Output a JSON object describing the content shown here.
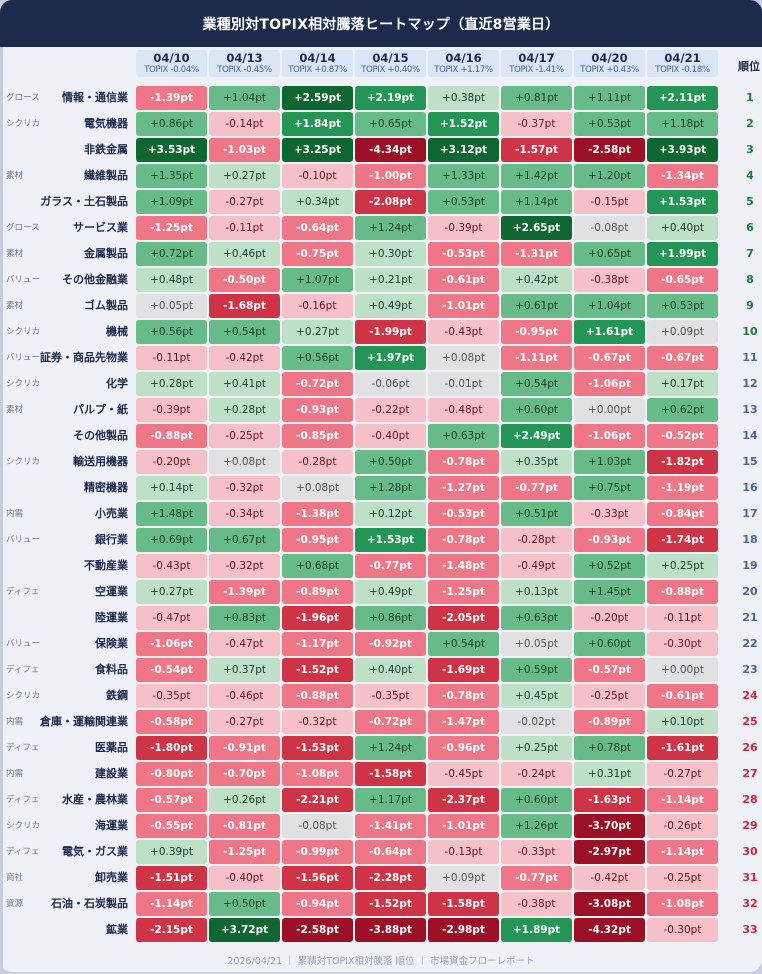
{
  "title": "業種別対TOPIX相対騰落ヒートマップ（直近8営業日）",
  "rank_header": "順位",
  "footer": "2026/04/21 ｜ 累積対TOPIX相対騰落 順位 ｜ 市場資金フローレポート",
  "columns": [
    {
      "date": "04/10",
      "topix": "TOPIX -0.04%"
    },
    {
      "date": "04/13",
      "topix": "TOPIX -0.45%"
    },
    {
      "date": "04/14",
      "topix": "TOPIX +0.87%"
    },
    {
      "date": "04/15",
      "topix": "TOPIX +0.40%"
    },
    {
      "date": "04/16",
      "topix": "TOPIX +1.17%"
    },
    {
      "date": "04/17",
      "topix": "TOPIX -1.41%"
    },
    {
      "date": "04/20",
      "topix": "TOPIX +0.43%"
    },
    {
      "date": "04/21",
      "topix": "TOPIX -0.18%"
    }
  ],
  "colors": {
    "title_bg": "#1c2a4b",
    "rank_top": "#1f7a3e",
    "rank_mid": "#4f6590",
    "rank_bottom": "#c8283c",
    "pos_strongest": "#0e6630",
    "pos_strong": "#239656",
    "pos_medium": "#66bb88",
    "pos_light": "#bde0c6",
    "neutral": "#e1e1e3",
    "neg_light": "#f5c0c8",
    "neg_medium": "#ee7686",
    "neg_strong": "#cf3346",
    "neg_strongest": "#9b1024"
  },
  "chart_data": {
    "type": "heatmap",
    "title": "業種別対TOPIX相対騰落ヒートマップ（直近8営業日）",
    "unit": "pt",
    "x": [
      "04/10",
      "04/13",
      "04/14",
      "04/15",
      "04/16",
      "04/17",
      "04/20",
      "04/21"
    ],
    "topix_change_pct": [
      -0.04,
      -0.45,
      0.87,
      0.4,
      1.17,
      -1.41,
      0.43,
      -0.18
    ],
    "rows": [
      {
        "rank": 1,
        "tag": "グロース",
        "sector": "情報・通信業",
        "values": [
          -1.39,
          1.04,
          2.59,
          2.19,
          0.38,
          0.81,
          1.11,
          2.11
        ]
      },
      {
        "rank": 2,
        "tag": "シクリカ",
        "sector": "電気機器",
        "values": [
          0.86,
          -0.14,
          1.84,
          0.65,
          1.52,
          -0.37,
          0.53,
          1.18
        ]
      },
      {
        "rank": 3,
        "tag": "",
        "sector": "非鉄金属",
        "values": [
          3.53,
          -1.03,
          3.25,
          -4.34,
          3.12,
          -1.57,
          -2.58,
          3.93
        ]
      },
      {
        "rank": 4,
        "tag": "素材",
        "sector": "繊維製品",
        "values": [
          1.35,
          0.27,
          -0.1,
          -1.0,
          1.33,
          1.42,
          1.2,
          -1.34
        ]
      },
      {
        "rank": 5,
        "tag": "",
        "sector": "ガラス・土石製品",
        "values": [
          1.09,
          -0.27,
          0.34,
          -2.08,
          0.53,
          1.14,
          -0.15,
          1.53
        ]
      },
      {
        "rank": 6,
        "tag": "グロース",
        "sector": "サービス業",
        "values": [
          -1.25,
          -0.11,
          -0.64,
          1.24,
          -0.39,
          2.65,
          -0.08,
          0.4
        ]
      },
      {
        "rank": 7,
        "tag": "素材",
        "sector": "金属製品",
        "values": [
          0.72,
          0.46,
          -0.75,
          0.3,
          -0.53,
          -1.31,
          0.65,
          1.99
        ]
      },
      {
        "rank": 8,
        "tag": "バリュー",
        "sector": "その他金融業",
        "values": [
          0.48,
          -0.5,
          1.07,
          0.21,
          -0.61,
          0.42,
          -0.38,
          -0.65
        ]
      },
      {
        "rank": 9,
        "tag": "素材",
        "sector": "ゴム製品",
        "values": [
          0.05,
          -1.68,
          -0.16,
          0.49,
          -1.01,
          0.61,
          1.04,
          0.53
        ]
      },
      {
        "rank": 10,
        "tag": "シクリカ",
        "sector": "機械",
        "values": [
          0.56,
          0.54,
          0.27,
          -1.99,
          -0.43,
          -0.95,
          1.61,
          0.09
        ]
      },
      {
        "rank": 11,
        "tag": "バリュー",
        "sector": "証券・商品先物業",
        "values": [
          -0.11,
          -0.42,
          0.56,
          1.97,
          0.08,
          -1.11,
          -0.67,
          -0.67
        ]
      },
      {
        "rank": 12,
        "tag": "シクリカ",
        "sector": "化学",
        "values": [
          0.28,
          0.41,
          -0.72,
          -0.06,
          -0.01,
          0.54,
          -1.06,
          0.17
        ]
      },
      {
        "rank": 13,
        "tag": "素材",
        "sector": "パルプ・紙",
        "values": [
          -0.39,
          0.28,
          -0.93,
          -0.22,
          -0.48,
          0.6,
          0.0,
          0.62
        ]
      },
      {
        "rank": 14,
        "tag": "",
        "sector": "その他製品",
        "values": [
          -0.88,
          -0.25,
          -0.85,
          -0.4,
          0.63,
          2.49,
          -1.06,
          -0.52
        ]
      },
      {
        "rank": 15,
        "tag": "シクリカ",
        "sector": "輸送用機器",
        "values": [
          -0.2,
          0.08,
          -0.28,
          0.5,
          -0.78,
          0.35,
          1.03,
          -1.82
        ]
      },
      {
        "rank": 16,
        "tag": "",
        "sector": "精密機器",
        "values": [
          0.14,
          -0.32,
          0.08,
          1.28,
          -1.27,
          -0.77,
          0.75,
          -1.19
        ]
      },
      {
        "rank": 17,
        "tag": "内需",
        "sector": "小売業",
        "values": [
          1.48,
          -0.34,
          -1.38,
          0.12,
          -0.53,
          0.51,
          -0.33,
          -0.84
        ]
      },
      {
        "rank": 18,
        "tag": "バリュー",
        "sector": "銀行業",
        "values": [
          0.69,
          0.67,
          -0.95,
          1.53,
          -0.78,
          -0.28,
          -0.93,
          -1.74
        ]
      },
      {
        "rank": 19,
        "tag": "",
        "sector": "不動産業",
        "values": [
          -0.43,
          -0.32,
          0.68,
          -0.77,
          -1.48,
          -0.49,
          0.52,
          0.25
        ]
      },
      {
        "rank": 20,
        "tag": "ディフェ",
        "sector": "空運業",
        "values": [
          0.27,
          -1.39,
          -0.89,
          0.49,
          -1.25,
          0.13,
          1.45,
          -0.88
        ]
      },
      {
        "rank": 21,
        "tag": "",
        "sector": "陸運業",
        "values": [
          -0.47,
          0.83,
          -1.96,
          0.86,
          -2.05,
          0.63,
          -0.2,
          -0.11
        ]
      },
      {
        "rank": 22,
        "tag": "バリュー",
        "sector": "保険業",
        "values": [
          -1.06,
          -0.47,
          -1.17,
          -0.92,
          0.54,
          0.05,
          0.6,
          -0.3
        ]
      },
      {
        "rank": 23,
        "tag": "ディフェ",
        "sector": "食料品",
        "values": [
          -0.54,
          0.37,
          -1.52,
          0.4,
          -1.69,
          0.59,
          -0.57,
          0.0
        ]
      },
      {
        "rank": 24,
        "tag": "シクリカ",
        "sector": "鉄鋼",
        "values": [
          -0.35,
          -0.46,
          -0.88,
          -0.35,
          -0.78,
          0.45,
          -0.25,
          -0.61
        ]
      },
      {
        "rank": 25,
        "tag": "内需",
        "sector": "倉庫・運輸関連業",
        "values": [
          -0.58,
          -0.27,
          -0.32,
          -0.72,
          -1.47,
          -0.02,
          -0.89,
          0.1
        ]
      },
      {
        "rank": 26,
        "tag": "ディフェ",
        "sector": "医薬品",
        "values": [
          -1.8,
          -0.91,
          -1.53,
          1.24,
          -0.96,
          0.25,
          0.78,
          -1.61
        ]
      },
      {
        "rank": 27,
        "tag": "内需",
        "sector": "建設業",
        "values": [
          -0.8,
          -0.7,
          -1.08,
          -1.58,
          -0.45,
          -0.24,
          0.31,
          -0.27
        ]
      },
      {
        "rank": 28,
        "tag": "ディフェ",
        "sector": "水産・農林業",
        "values": [
          -0.57,
          0.26,
          -2.21,
          1.17,
          -2.37,
          0.6,
          -1.63,
          -1.14
        ]
      },
      {
        "rank": 29,
        "tag": "シクリカ",
        "sector": "海運業",
        "values": [
          -0.55,
          -0.81,
          -0.08,
          -1.41,
          -1.01,
          1.26,
          -3.7,
          -0.26
        ]
      },
      {
        "rank": 30,
        "tag": "ディフェ",
        "sector": "電気・ガス業",
        "values": [
          0.39,
          -1.25,
          -0.99,
          -0.64,
          -0.13,
          -0.33,
          -2.97,
          -1.14
        ]
      },
      {
        "rank": 31,
        "tag": "商社",
        "sector": "卸売業",
        "values": [
          -1.51,
          -0.4,
          -1.56,
          -2.28,
          0.09,
          -0.77,
          -0.42,
          -0.25
        ]
      },
      {
        "rank": 32,
        "tag": "資源",
        "sector": "石油・石炭製品",
        "values": [
          -1.14,
          0.5,
          -0.94,
          -1.52,
          -1.58,
          -0.38,
          -3.08,
          -1.08
        ]
      },
      {
        "rank": 33,
        "tag": "",
        "sector": "鉱業",
        "values": [
          -2.15,
          3.72,
          -2.58,
          -3.88,
          -2.98,
          1.89,
          -4.32,
          -0.3
        ]
      }
    ]
  }
}
